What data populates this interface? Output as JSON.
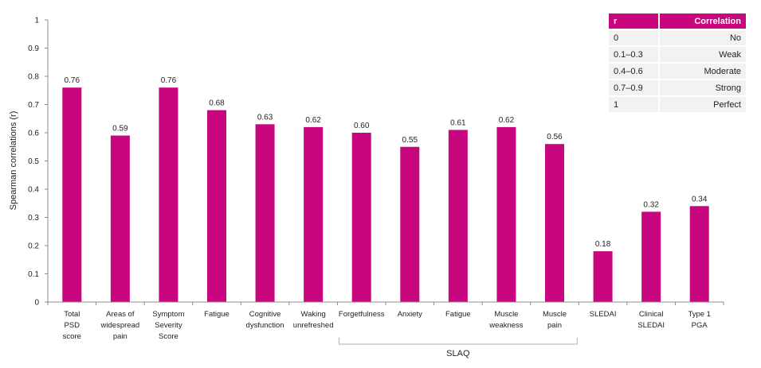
{
  "colors": {
    "bar": "#c8077e",
    "axis": "#8c8c8c",
    "table_header": "#c8077e",
    "table_row": "#f2f2f2"
  },
  "chart_data": {
    "type": "bar",
    "ylabel": "Spearman correlations (r)",
    "ylim": [
      0,
      1
    ],
    "yticks": [
      "0",
      "0.1",
      "0.2",
      "0.3",
      "0.4",
      "0.5",
      "0.6",
      "0.7",
      "0.8",
      "0.9",
      "1"
    ],
    "grid": false,
    "categories": [
      [
        "Total",
        "PSD",
        "score"
      ],
      [
        "Areas of",
        "widespread",
        "pain"
      ],
      [
        "Symptom",
        "Severity",
        "Score"
      ],
      [
        "Fatigue"
      ],
      [
        "Cognitive",
        "dysfunction"
      ],
      [
        "Waking",
        "unrefreshed"
      ],
      [
        "Forgetfulness"
      ],
      [
        "Anxiety"
      ],
      [
        "Fatigue"
      ],
      [
        "Muscle",
        "weakness"
      ],
      [
        "Muscle",
        "pain"
      ],
      [
        "SLEDAI"
      ],
      [
        "Clinical",
        "SLEDAI"
      ],
      [
        "Type 1",
        "PGA"
      ]
    ],
    "values": [
      0.76,
      0.59,
      0.76,
      0.68,
      0.63,
      0.62,
      0.6,
      0.55,
      0.61,
      0.62,
      0.56,
      0.18,
      0.32,
      0.34
    ],
    "data_labels": [
      "0.76",
      "0.59",
      "0.76",
      "0.68",
      "0.63",
      "0.62",
      "0.60",
      "0.55",
      "0.61",
      "0.62",
      "0.56",
      "0.18",
      "0.32",
      "0.34"
    ],
    "groups": [
      {
        "label": "SLAQ",
        "from_index": 6,
        "to_index": 10
      }
    ]
  },
  "legend_table": {
    "headers": [
      "r",
      "Correlation"
    ],
    "rows": [
      [
        "0",
        "No"
      ],
      [
        "0.1–0.3",
        "Weak"
      ],
      [
        "0.4–0.6",
        "Moderate"
      ],
      [
        "0.7–0.9",
        "Strong"
      ],
      [
        "1",
        "Perfect"
      ]
    ]
  }
}
